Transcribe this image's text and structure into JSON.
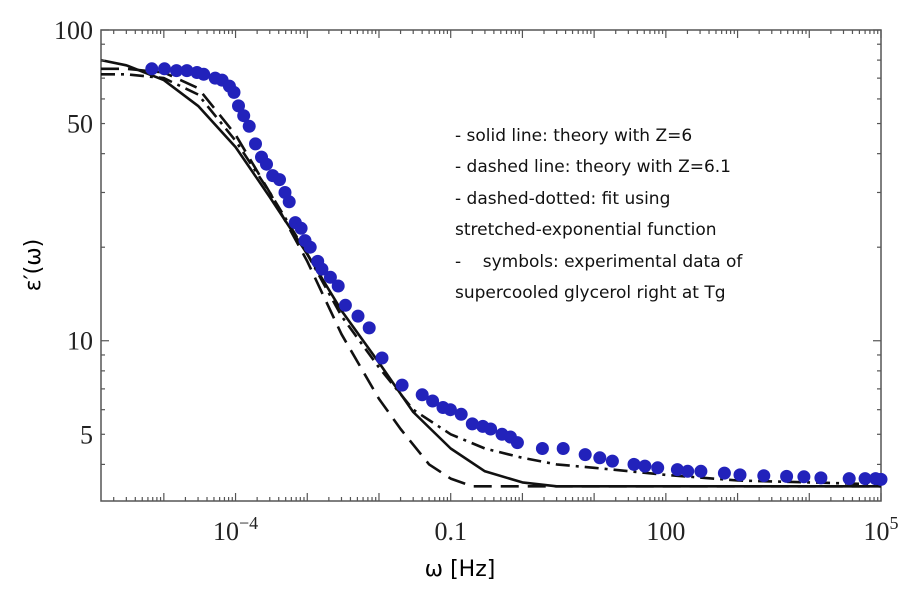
{
  "chart_data": {
    "type": "line",
    "xlabel": "ω [Hz]",
    "ylabel": "ε′(ω)",
    "x_scale": "log",
    "y_scale": "log",
    "xlim": [
      1.33e-06,
      100000
    ],
    "ylim": [
      3.05,
      100
    ],
    "x_ticks": [
      {
        "value": 0.0001,
        "base": "10",
        "exp": "−4"
      },
      {
        "value": 0.1,
        "label": "0.1"
      },
      {
        "value": 100,
        "label": "100"
      },
      {
        "value": 100000,
        "base": "10",
        "exp": "5"
      }
    ],
    "y_ticks": [
      {
        "value": 5,
        "label": "5"
      },
      {
        "value": 10,
        "label": "10"
      },
      {
        "value": 50,
        "label": "50"
      },
      {
        "value": 100,
        "label": "100"
      }
    ],
    "annotations": [
      "- solid line: theory with Z=6",
      "- dashed line: theory with Z=6.1",
      "- dashed-dotted: fit using",
      "stretched-exponential function",
      "-    symbols: experimental data of",
      "supercooled glycerol right at Tg"
    ],
    "series": [
      {
        "style": "solid",
        "color": "#111111",
        "x": [
          1.33e-06,
          3e-06,
          1e-05,
          3e-05,
          0.0001,
          0.0003,
          0.001,
          0.003,
          0.01,
          0.03,
          0.1,
          0.3,
          1,
          3,
          10,
          100,
          1000,
          10000,
          100000
        ],
        "y": [
          80,
          77,
          69,
          57,
          42,
          29,
          19,
          12.5,
          8.5,
          5.9,
          4.5,
          3.8,
          3.5,
          3.4,
          3.4,
          3.4,
          3.4,
          3.4,
          3.4
        ]
      },
      {
        "style": "dashed",
        "color": "#111111",
        "x": [
          1.33e-06,
          3e-06,
          1e-05,
          3e-05,
          0.0001,
          0.0003,
          0.001,
          0.003,
          0.01,
          0.02,
          0.05,
          0.1,
          0.2,
          0.5,
          1,
          10,
          100,
          1000,
          10000,
          100000
        ],
        "y": [
          75,
          75,
          73,
          65,
          46,
          30,
          18,
          10.5,
          6.5,
          5.2,
          4,
          3.6,
          3.4,
          3.4,
          3.4,
          3.4,
          3.4,
          3.4,
          3.4,
          3.4
        ]
      },
      {
        "style": "dash-dot",
        "color": "#111111",
        "x": [
          1.33e-06,
          3e-06,
          1e-05,
          3e-05,
          0.0001,
          0.0003,
          0.001,
          0.003,
          0.01,
          0.03,
          0.1,
          0.3,
          1,
          3,
          10,
          100,
          1000,
          10000,
          100000
        ],
        "y": [
          72,
          72,
          70,
          62,
          44,
          30,
          19,
          12,
          8.2,
          6,
          5,
          4.5,
          4.2,
          4.0,
          3.9,
          3.7,
          3.55,
          3.5,
          3.45
        ]
      },
      {
        "style": "markers",
        "color": "#2222bb",
        "x": [
          6.8e-06,
          1.02e-05,
          1.5e-05,
          2.1e-05,
          2.9e-05,
          3.6e-05,
          5.2e-05,
          6.5e-05,
          8.2e-05,
          9.5e-05,
          0.00011,
          0.00013,
          0.000155,
          0.00019,
          0.00023,
          0.00027,
          0.00033,
          0.00041,
          0.00049,
          0.00056,
          0.00068,
          0.00082,
          0.00093,
          0.0011,
          0.0014,
          0.0016,
          0.0021,
          0.0027,
          0.0034,
          0.0051,
          0.0073,
          0.011,
          0.021,
          0.04,
          0.056,
          0.078,
          0.099,
          0.14,
          0.2,
          0.28,
          0.36,
          0.52,
          0.68,
          0.85,
          1.9,
          3.7,
          7.5,
          12,
          18,
          36,
          51,
          77,
          145,
          202,
          308,
          655,
          1080,
          2320,
          4830,
          8400,
          14500,
          36000,
          60000,
          84000,
          100000
        ],
        "y": [
          75,
          75,
          74,
          74,
          73,
          72,
          70,
          69,
          66,
          63,
          57,
          53,
          49,
          43,
          39,
          37,
          34,
          33,
          30,
          28,
          24,
          23,
          21,
          20,
          18,
          17,
          16,
          15,
          13,
          12,
          11,
          8.8,
          7.2,
          6.7,
          6.4,
          6.1,
          6.0,
          5.8,
          5.4,
          5.3,
          5.2,
          5.0,
          4.9,
          4.7,
          4.5,
          4.5,
          4.3,
          4.2,
          4.1,
          4.0,
          3.95,
          3.9,
          3.85,
          3.8,
          3.8,
          3.75,
          3.7,
          3.68,
          3.66,
          3.65,
          3.62,
          3.6,
          3.6,
          3.6,
          3.58
        ]
      }
    ]
  }
}
